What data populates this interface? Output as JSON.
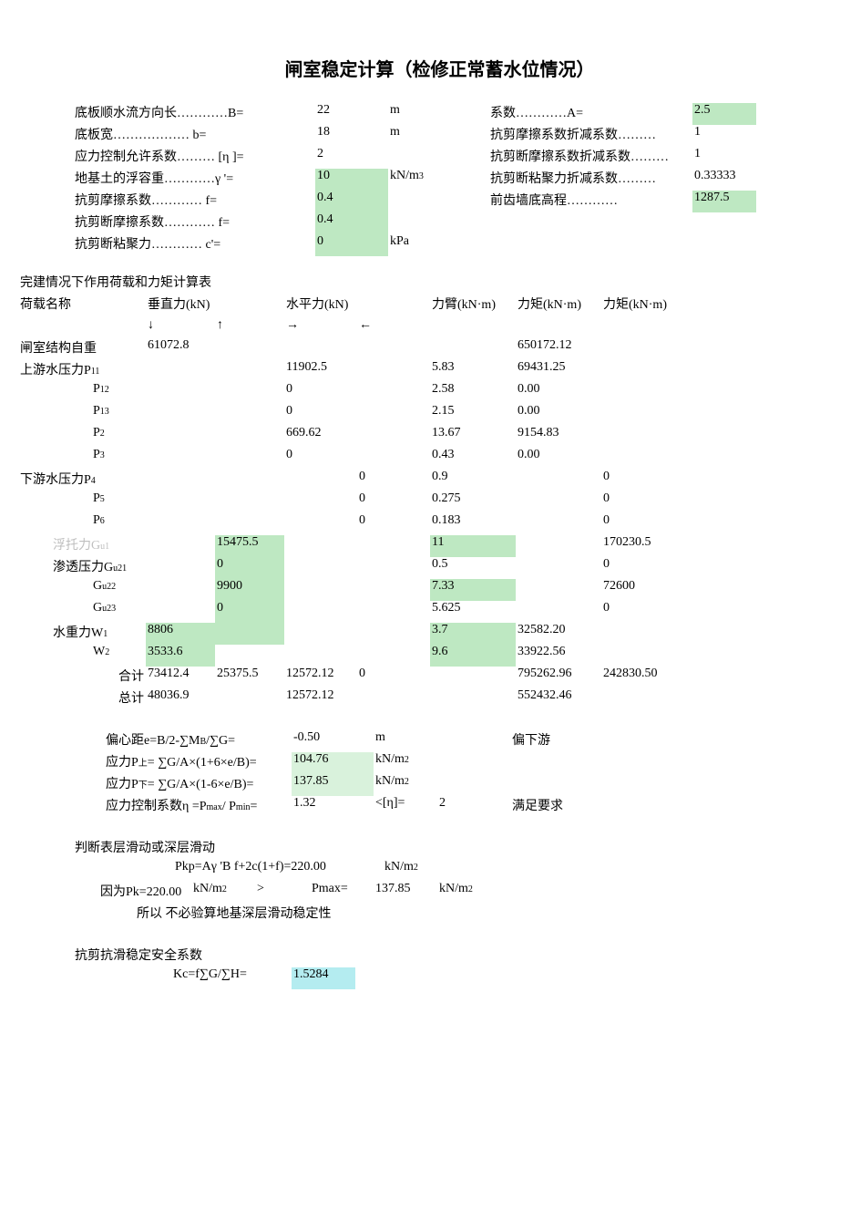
{
  "title": "闸室稳定计算（检修正常蓄水位情况）",
  "colors": {
    "hl_green": "#bee8c2",
    "hl_lgreen": "#d9f2dc",
    "hl_cyan": "#b4ecf0",
    "text": "#000000",
    "gray": "#bfbfbf",
    "bg": "#ffffff"
  },
  "params_left": {
    "B": {
      "label": "底板顺水流方向长…………B=",
      "value": "22",
      "unit": "m",
      "hl": false
    },
    "b": {
      "label": "底板宽……………… b=",
      "value": "18",
      "unit": "m",
      "hl": false
    },
    "eta": {
      "label": "应力控制允许系数……… [η ]=",
      "value": "2",
      "unit": "",
      "hl": false
    },
    "gamma": {
      "label": "地基土的浮容重…………γ  '=",
      "value": "10",
      "unit_html": "kN/m",
      "sup": "3",
      "hl": true
    },
    "f": {
      "label": "抗剪摩擦系数………… f=",
      "value": "0.4",
      "unit": "",
      "hl": true
    },
    "f2": {
      "label": "抗剪断摩擦系数………… f=",
      "value": "0.4",
      "unit": "",
      "hl": true
    },
    "c": {
      "label": "抗剪断粘聚力………… c'=",
      "value": "0",
      "unit": "kPa",
      "hl": true
    }
  },
  "params_right": {
    "A": {
      "label": "系数…………A=",
      "value": "2.5",
      "hl": true
    },
    "km": {
      "label": "抗剪摩擦系数折减系数………",
      "value": "1",
      "hl": false
    },
    "kmd": {
      "label": "抗剪断摩擦系数折减系数………",
      "value": "1",
      "hl": false
    },
    "kc": {
      "label": "抗剪断粘聚力折减系数………",
      "value": "0.33333",
      "hl": false
    },
    "elev": {
      "label": "前齿墙底高程…………",
      "value": "1287.5",
      "hl": true
    }
  },
  "table_title": "完建情况下作用荷载和力矩计算表",
  "headers": {
    "name": "荷载名称",
    "vforce": "垂直力(kN)",
    "hforce": "水平力(kN)",
    "arm": "力臂(kN·m)",
    "M1": "力矩(kN·m)",
    "M2": "力矩(kN·m)",
    "down": "↓",
    "up": "↑",
    "right": "→",
    "left": "←"
  },
  "loads": [
    {
      "name": "闸室结构自重",
      "Vd": "61072.8",
      "Vu": "",
      "Hr": "",
      "Hl": "",
      "arm": "",
      "M1": "650172.12",
      "M2": "",
      "cls": ""
    },
    {
      "name": "上游水压力P",
      "sub": "11",
      "Vd": "",
      "Vu": "",
      "Hr": "11902.5",
      "Hl": "",
      "arm": "5.83",
      "M1": "69431.25",
      "M2": "",
      "cls": ""
    },
    {
      "name": "P",
      "sub": "12",
      "Vd": "",
      "Vu": "",
      "Hr": "0",
      "Hl": "",
      "arm": "2.58",
      "M1": "0.00",
      "M2": "",
      "cls": "",
      "ind": "ind2"
    },
    {
      "name": "P",
      "sub": "13",
      "Vd": "",
      "Vu": "",
      "Hr": "0",
      "Hl": "",
      "arm": "2.15",
      "M1": "0.00",
      "M2": "",
      "cls": "",
      "ind": "ind2"
    },
    {
      "name": "P",
      "sub": "2",
      "Vd": "",
      "Vu": "",
      "Hr": "669.62",
      "Hl": "",
      "arm": "13.67",
      "M1": "9154.83",
      "M2": "",
      "cls": "",
      "ind": "ind2"
    },
    {
      "name": "P",
      "sub": "3",
      "Vd": "",
      "Vu": "",
      "Hr": "0",
      "Hl": "",
      "arm": "0.43",
      "M1": "0.00",
      "M2": "",
      "cls": "",
      "ind": "ind2"
    },
    {
      "name": "下游水压力P",
      "sub": "4",
      "Vd": "",
      "Vu": "",
      "Hr": "",
      "Hl": "0",
      "arm": "0.9",
      "M1": "",
      "M2": "0",
      "cls": ""
    },
    {
      "name": "P",
      "sub": "5",
      "Vd": "",
      "Vu": "",
      "Hr": "",
      "Hl": "0",
      "arm": "0.275",
      "M1": "",
      "M2": "0",
      "cls": "",
      "ind": "ind2"
    },
    {
      "name": "P",
      "sub": "6",
      "Vd": "",
      "Vu": "",
      "Hr": "",
      "Hl": "0",
      "arm": "0.183",
      "M1": "",
      "M2": "0",
      "cls": "",
      "ind": "ind2"
    },
    {
      "name": "浮托力G",
      "sub": "u1",
      "Vd": "",
      "Vu": "15475.5",
      "Hr": "",
      "Hl": "",
      "arm": "11",
      "M1": "",
      "M2": "170230.5",
      "cls": "gray",
      "hlVu": true,
      "hlArm": true,
      "ind": "ind1",
      "namegray": true
    },
    {
      "name": "渗透压力G",
      "sub": "u21",
      "Vd": "",
      "Vu": "0",
      "Hr": "",
      "Hl": "",
      "arm": "0.5",
      "M1": "",
      "M2": "0",
      "hlVu": true,
      "hlArm": false,
      "ind": "ind1"
    },
    {
      "name": "G",
      "sub": "u22",
      "Vd": "",
      "Vu": "9900",
      "Hr": "",
      "Hl": "",
      "arm": "7.33",
      "M1": "",
      "M2": "72600",
      "hlVu": true,
      "hlArm": true,
      "ind": "ind2"
    },
    {
      "name": "G",
      "sub": "u23",
      "Vd": "",
      "Vu": "0",
      "Hr": "",
      "Hl": "",
      "arm": "5.625",
      "M1": "",
      "M2": "0",
      "hlVu": true,
      "hlArm": false,
      "ind": "ind2"
    },
    {
      "name": "水重力W",
      "sub": "1",
      "Vd": "8806",
      "Vu": "",
      "Hr": "",
      "Hl": "",
      "arm": "3.7",
      "M1": "32582.20",
      "M2": "",
      "hlVd": true,
      "hlVu_blank": true,
      "hlArm": true,
      "ind": "ind1"
    },
    {
      "name": "W",
      "sub": "2",
      "Vd": "3533.6",
      "Vu": "",
      "Hr": "",
      "Hl": "",
      "arm": "9.6",
      "M1": "33922.56",
      "M2": "",
      "hlVd": true,
      "hlArm": true,
      "ind": "ind2"
    }
  ],
  "sum": {
    "label": "合计",
    "Vd": "73412.4",
    "Vu": "25375.5",
    "Hr": "12572.12",
    "Hl": "0",
    "M1": "795262.96",
    "M2": "242830.50"
  },
  "total": {
    "label": "总计",
    "Vd": "48036.9",
    "Hr": "12572.12",
    "M1": "552432.46"
  },
  "ecc": {
    "e": {
      "label": "偏心距e=B/2-∑M",
      "sub": "B",
      "label2": "/∑G=",
      "value": "-0.50",
      "unit": "m",
      "note": "偏下游"
    },
    "Pu": {
      "label": "应力P",
      "sub": "上",
      "label2": "= ∑G/A×(1+6×e/B)=",
      "value": "104.76",
      "unit_html": "kN/m",
      "sup": "2",
      "hl": true
    },
    "Pd": {
      "label": "应力P",
      "sub": "下",
      "label2": "= ∑G/A×(1-6×e/B)=",
      "value": "137.85",
      "unit_html": "kN/m",
      "sup": "2",
      "hl": true
    },
    "eta": {
      "label": "应力控制系数η =P",
      "sub": "max",
      "label2": "/ P",
      "sub2": "min",
      "label3": "=",
      "value": "1.32",
      "cmp": "<[η]=",
      "lim": "2",
      "res": "满足要求"
    }
  },
  "slide": {
    "title": "判断表层滑动或深层滑动",
    "pkp_lhs": "Pkp=Aγ 'B   f+2c(1+f)=",
    "pkp_val": "220.00",
    "pkp_unit_html": "kN/m",
    "pkp_sup": "2",
    "because": "因为Pk=",
    "pk": "220.00",
    "pkunit_html": "kN/m",
    "pksup": "2",
    "gt": ">",
    "pmaxl": "Pmax=",
    "pmax": "137.85",
    "pmaxunit_html": "kN/m",
    "pmaxsup": "2",
    "so": "所以 不必验算地基深层滑动稳定性"
  },
  "Kc": {
    "title": "抗剪抗滑稳定安全系数",
    "label": "Kc=f∑G/∑H=",
    "value": "1.5284",
    "hl": true
  }
}
